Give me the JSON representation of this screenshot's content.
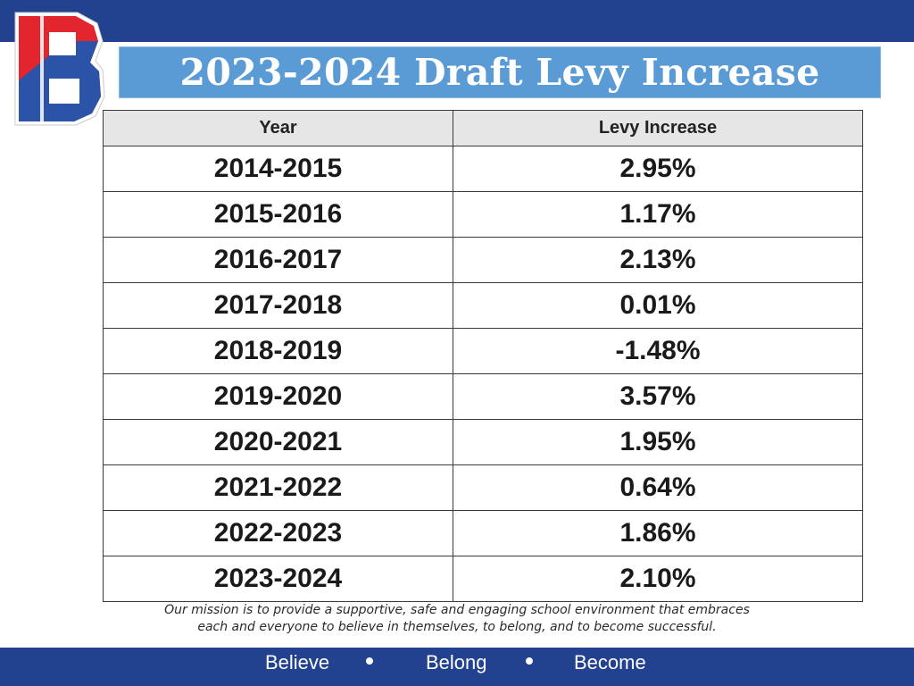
{
  "slide": {
    "title": "2023-2024 Draft Levy Increase",
    "logo_letter": "B",
    "colors": {
      "brand_blue": "#22418f",
      "title_bar": "#5b9bd5",
      "logo_red": "#e3262d",
      "logo_blue": "#2b53a8"
    }
  },
  "table": {
    "headers": [
      "Year",
      "Levy Increase"
    ],
    "rows": [
      [
        "2014-2015",
        "2.95%"
      ],
      [
        "2015-2016",
        "1.17%"
      ],
      [
        "2016-2017",
        "2.13%"
      ],
      [
        "2017-2018",
        "0.01%"
      ],
      [
        "2018-2019",
        "-1.48%"
      ],
      [
        "2019-2020",
        "3.57%"
      ],
      [
        "2020-2021",
        "1.95%"
      ],
      [
        "2021-2022",
        "0.64%"
      ],
      [
        "2022-2023",
        "1.86%"
      ],
      [
        "2023-2024",
        "2.10%"
      ]
    ]
  },
  "mission": {
    "line1": "Our mission is to provide a supportive, safe and engaging school environment that embraces",
    "line2": "each and everyone to believe in themselves, to belong, and to become successful."
  },
  "footer": {
    "motto": [
      "Believe",
      "Belong",
      "Become"
    ],
    "separator_icon": "bullet-dot"
  }
}
